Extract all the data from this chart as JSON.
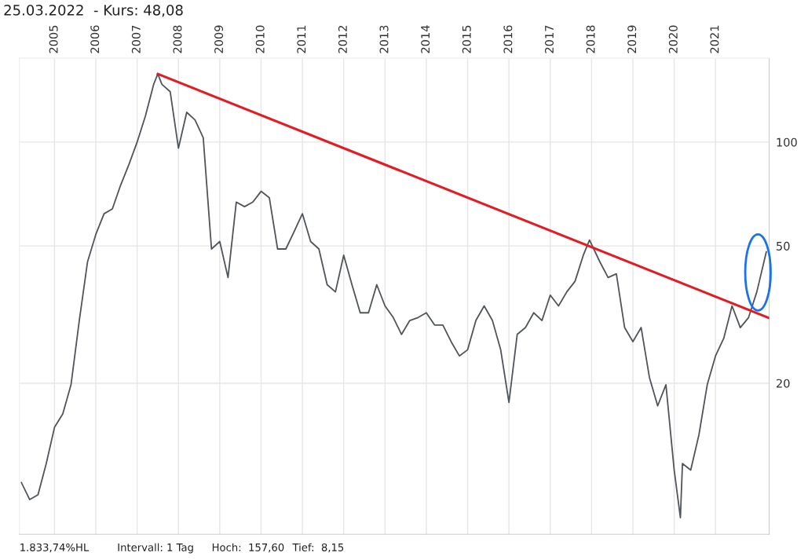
{
  "chart_data": {
    "type": "line",
    "title": "25.03.2022  - Kurs: 48,08",
    "x": [
      2004.2,
      2004.4,
      2004.6,
      2004.8,
      2005.0,
      2005.2,
      2005.4,
      2005.6,
      2005.8,
      2006.0,
      2006.2,
      2006.4,
      2006.6,
      2006.8,
      2007.0,
      2007.2,
      2007.4,
      2007.5,
      2007.6,
      2007.8,
      2008.0,
      2008.2,
      2008.4,
      2008.6,
      2008.8,
      2009.0,
      2009.2,
      2009.4,
      2009.6,
      2009.8,
      2010.0,
      2010.2,
      2010.4,
      2010.6,
      2010.8,
      2011.0,
      2011.2,
      2011.4,
      2011.6,
      2011.8,
      2012.0,
      2012.2,
      2012.4,
      2012.6,
      2012.8,
      2013.0,
      2013.2,
      2013.4,
      2013.6,
      2013.8,
      2014.0,
      2014.2,
      2014.4,
      2014.6,
      2014.8,
      2015.0,
      2015.2,
      2015.4,
      2015.6,
      2015.8,
      2016.0,
      2016.2,
      2016.4,
      2016.6,
      2016.8,
      2017.0,
      2017.2,
      2017.4,
      2017.6,
      2017.8,
      2017.95,
      2018.2,
      2018.4,
      2018.6,
      2018.8,
      2019.0,
      2019.2,
      2019.4,
      2019.6,
      2019.8,
      2020.0,
      2020.15,
      2020.2,
      2020.4,
      2020.6,
      2020.8,
      2021.0,
      2021.2,
      2021.4,
      2021.6,
      2021.8,
      2022.0,
      2022.23
    ],
    "series": [
      {
        "color": "#50555b",
        "values": [
          10.3,
          9.2,
          9.5,
          11.7,
          14.9,
          16.3,
          19.8,
          30.4,
          45,
          54,
          62,
          64,
          75,
          86,
          100,
          119,
          147,
          157.6,
          147,
          140,
          96,
          122,
          116,
          103,
          49,
          51.5,
          40.5,
          67,
          65,
          67,
          72,
          69,
          49,
          49,
          55,
          62,
          51.5,
          49,
          38.6,
          36.8,
          47,
          38.6,
          32,
          32,
          38.6,
          33.5,
          31,
          27.7,
          30.4,
          31,
          32,
          29.5,
          29.5,
          26.4,
          24,
          25,
          30.4,
          33.5,
          30.4,
          25,
          17.6,
          27.7,
          29,
          32,
          30.4,
          36,
          33.5,
          36.8,
          39.5,
          47,
          52,
          45,
          40.5,
          41.5,
          29,
          26.4,
          29,
          20.8,
          17.2,
          19.8,
          11.2,
          8.15,
          11.7,
          11.2,
          14.2,
          19.8,
          24,
          27,
          33.5,
          29,
          31,
          36.8,
          48.08
        ]
      },
      {
        "color": "#e31b23",
        "x": [
          2007.5,
          2022.3
        ],
        "values": [
          157.6,
          30.9
        ]
      }
    ],
    "xlim": [
      2004.15,
      2022.3
    ],
    "xticks": [
      2005,
      2006,
      2007,
      2008,
      2009,
      2010,
      2011,
      2012,
      2013,
      2014,
      2015,
      2016,
      2017,
      2018,
      2019,
      2020,
      2021
    ],
    "ylim": [
      7.3,
      175
    ],
    "yticks": [
      20,
      50,
      100
    ],
    "log": "y",
    "grid": true,
    "annotations": [
      "1.833,74%HL",
      "Intervall: 1 Tag",
      "Hoch:  157,60",
      "Tief:  8,15"
    ]
  }
}
